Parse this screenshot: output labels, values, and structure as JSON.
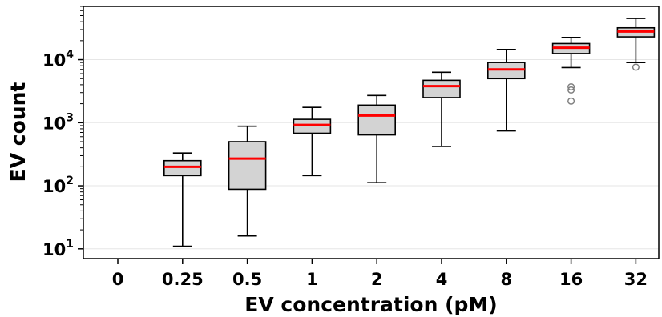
{
  "chart_data": {
    "type": "box",
    "xlabel": "EV concentration (pM)",
    "ylabel": "EV count",
    "yscale": "log",
    "ylim": [
      7,
      70000
    ],
    "grid": "horizontal",
    "categories": [
      "0",
      "0.25",
      "0.5",
      "1",
      "2",
      "4",
      "8",
      "16",
      "32"
    ],
    "yticks": [
      {
        "base": "10",
        "exp": "1",
        "value": 10
      },
      {
        "base": "10",
        "exp": "2",
        "value": 100
      },
      {
        "base": "10",
        "exp": "3",
        "value": 1000
      },
      {
        "base": "10",
        "exp": "4",
        "value": 10000
      }
    ],
    "boxes": [
      null,
      {
        "whisker_low": 11,
        "q1": 145,
        "median": 200,
        "q3": 250,
        "whisker_high": 330,
        "outliers": []
      },
      {
        "whisker_low": 16,
        "q1": 88,
        "median": 270,
        "q3": 500,
        "whisker_high": 880,
        "outliers": []
      },
      {
        "whisker_low": 145,
        "q1": 680,
        "median": 920,
        "q3": 1130,
        "whisker_high": 1750,
        "outliers": []
      },
      {
        "whisker_low": 112,
        "q1": 640,
        "median": 1300,
        "q3": 1900,
        "whisker_high": 2700,
        "outliers": []
      },
      {
        "whisker_low": 420,
        "q1": 2500,
        "median": 3800,
        "q3": 4700,
        "whisker_high": 6300,
        "outliers": []
      },
      {
        "whisker_low": 740,
        "q1": 5000,
        "median": 7000,
        "q3": 9000,
        "whisker_high": 14500,
        "outliers": []
      },
      {
        "whisker_low": 7500,
        "q1": 12500,
        "median": 15500,
        "q3": 18000,
        "whisker_high": 22500,
        "outliers": [
          2200,
          3300,
          3700
        ]
      },
      {
        "whisker_low": 9000,
        "q1": 23000,
        "median": 28000,
        "q3": 32000,
        "whisker_high": 45000,
        "outliers": [
          7600
        ]
      }
    ],
    "colors": {
      "box_fill": "#d3d3d3",
      "median": "#ff0000",
      "outline": "#000000",
      "grid": "#e6e6e6",
      "outlier": "#808080"
    }
  }
}
